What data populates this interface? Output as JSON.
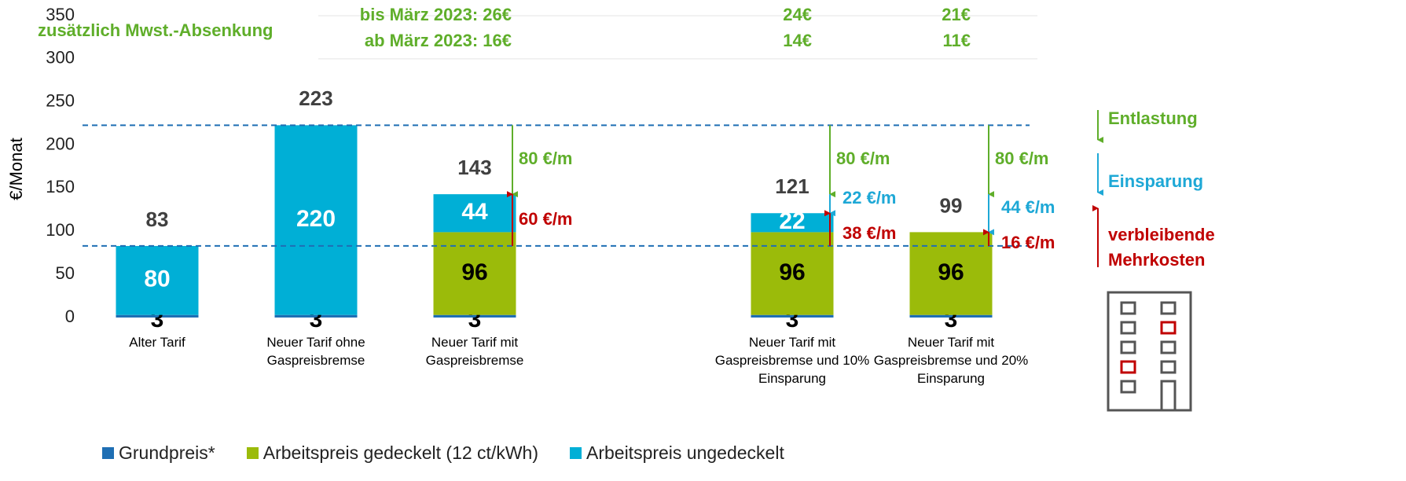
{
  "chart_data": {
    "type": "stacked_bar",
    "y_label": "€/Monat",
    "categories": [
      "Alter Tarif",
      "Neuer Tarif ohne Gaspreisbremse",
      "Neuer Tarif mit Gaspreisbremse",
      null,
      "Neuer Tarif mit Gaspreisbremse und 10% Einsparung",
      "Neuer Tarif mit Gaspreisbremse und 20% Einsparung"
    ],
    "series": [
      {
        "name": "Grundpreis*",
        "color": "#1f6fb4",
        "label_color": "#000000",
        "values": [
          3,
          3,
          3,
          null,
          3,
          3
        ]
      },
      {
        "name": "Arbeitspreis gedeckelt (12 ct/kWh)",
        "color": "#9bbb0a",
        "label_color": "#000000",
        "values": [
          null,
          null,
          96,
          null,
          96,
          96
        ]
      },
      {
        "name": "Arbeitspreis ungedeckelt",
        "color": "#00afd6",
        "label_color": "#ffffff",
        "values": [
          80,
          220,
          44,
          null,
          22,
          null
        ]
      }
    ],
    "totals": [
      83,
      223,
      143,
      null,
      121,
      99
    ],
    "reference_lines": [
      223,
      83
    ],
    "ylim": [
      0,
      350
    ],
    "yticks": [
      0,
      50,
      100,
      150,
      200,
      250,
      300,
      350
    ],
    "grid": false,
    "vat_title": "zusätzlich Mwst.-Absenkung",
    "vat_until_march": [
      null,
      null,
      "bis März 2023: 26€",
      null,
      "24€",
      "21€"
    ],
    "vat_from_march": [
      null,
      null,
      "ab März 2023: 16€",
      null,
      "14€",
      "11€"
    ],
    "relief": [
      null,
      null,
      "80 €/m",
      null,
      "80 €/m",
      "80 €/m"
    ],
    "saving": [
      null,
      null,
      null,
      null,
      "22 €/m",
      "44 €/m"
    ],
    "extra_cost": [
      null,
      null,
      "60 €/m",
      null,
      "38 €/m",
      "16 €/m"
    ],
    "arrow_legend": [
      {
        "name": "Entlastung",
        "color": "#5fae2a"
      },
      {
        "name": "Einsparung",
        "color": "#1ea8d6"
      },
      {
        "name": "verbleibende Mehrkosten",
        "color": "#c00000"
      }
    ]
  }
}
